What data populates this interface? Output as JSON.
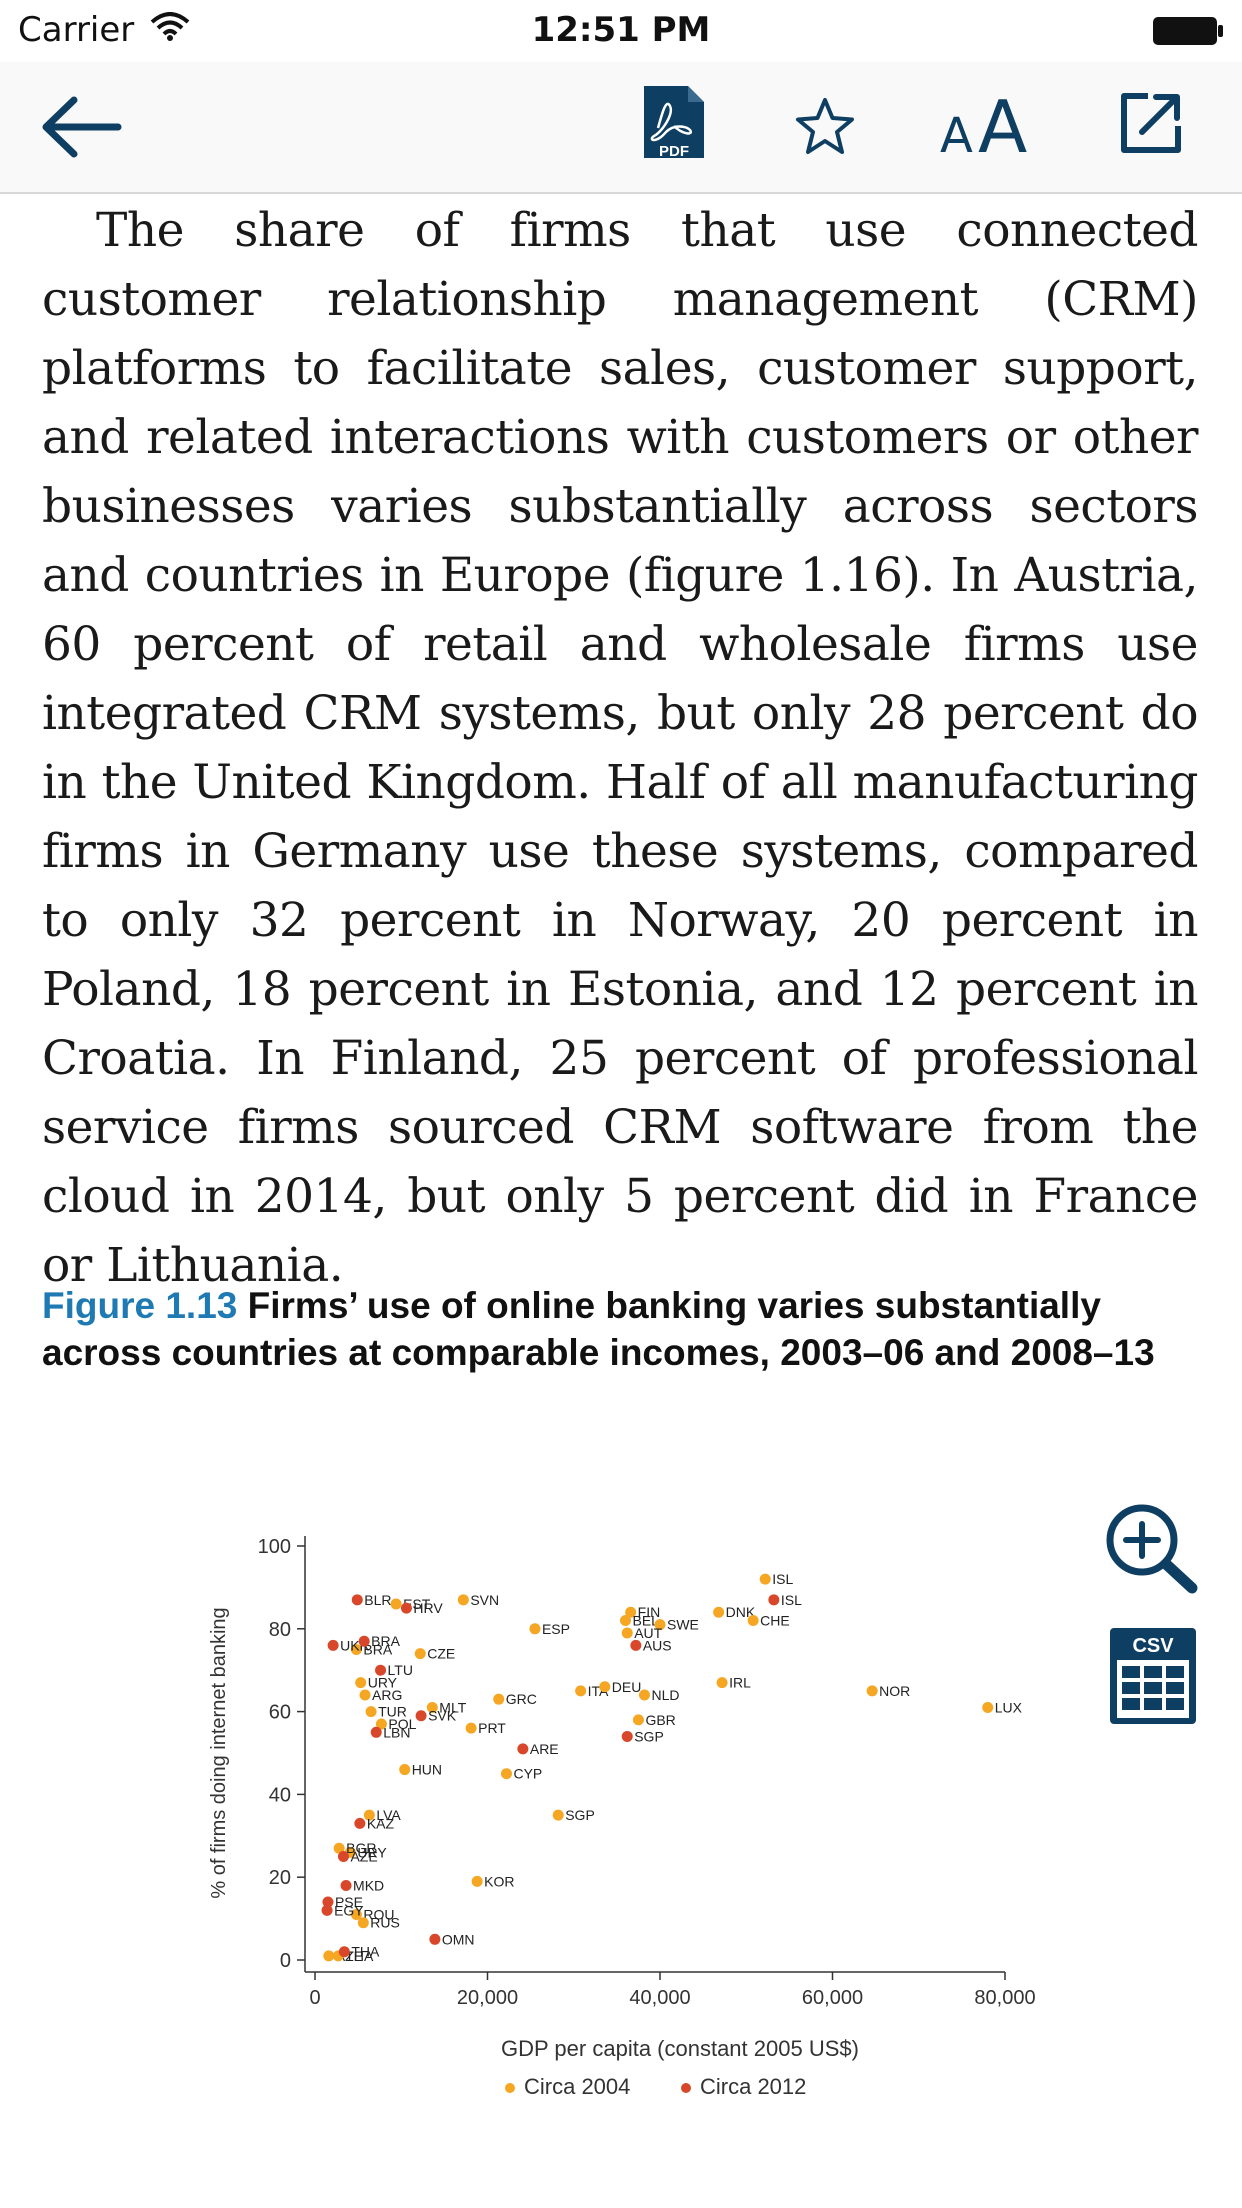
{
  "status_bar": {
    "carrier": "Carrier",
    "time": "12:51 PM"
  },
  "toolbar": {
    "back_icon": "arrow-left-icon",
    "pdf_label": "PDF",
    "star_icon": "star-icon",
    "font_size_label": "AA",
    "share_icon": "external-link-icon"
  },
  "body": {
    "paragraph": "The share of firms that use connected customer relationship management (CRM) platforms to facil­itate sales, customer support, and related interac­tions with customers or other businesses varies substantially across sectors and countries in Europe (figure 1.16). In Austria, 60 percent of retail and wholesale firms use integrated CRM systems, but only 28 percent do in the United Kingdom. Half of all manufacturing firms in Germany use these sys­tems, compared to only 32 percent in Norway, 20 percent in Poland, 18 percent in Estonia, and 12 per­cent in Croatia. In Finland, 25 percent of profession­al service firms sourced CRM software from the cloud in 2014, but only 5 percent did in France or Lithuania."
  },
  "figure": {
    "number": "Figure 1.13",
    "title": " Firms’ use of online banking varies substantially across countries at comparable incomes, 2003–06 and 2008–13"
  },
  "side_icons": {
    "zoom_icon": "zoom-in-icon",
    "csv_label": "CSV"
  },
  "chart_data": {
    "type": "scatter",
    "xlabel": "GDP per capita (constant 2005 US$)",
    "ylabel": "% of firms doing internet banking",
    "xlim": [
      0,
      80000
    ],
    "ylim": [
      0,
      100
    ],
    "x_ticks": [
      "0",
      "20,000",
      "40,000",
      "60,000",
      "80,000"
    ],
    "y_ticks": [
      "0",
      "20",
      "40",
      "60",
      "80",
      "100"
    ],
    "x_tick_values": [
      0,
      20000,
      40000,
      60000,
      80000
    ],
    "y_tick_values": [
      0,
      20,
      40,
      60,
      80,
      100
    ],
    "legend_position": "bottom",
    "series": [
      {
        "name": "Circa 2004",
        "color": "#f5a623",
        "points": [
          {
            "label": "EST",
            "x": 9400,
            "y": 86
          },
          {
            "label": "SVN",
            "x": 17200,
            "y": 87
          },
          {
            "label": "FIN",
            "x": 36600,
            "y": 84
          },
          {
            "label": "ISL",
            "x": 52200,
            "y": 92
          },
          {
            "label": "DNK",
            "x": 46800,
            "y": 84
          },
          {
            "label": "CHE",
            "x": 50800,
            "y": 82
          },
          {
            "label": "BEL",
            "x": 36000,
            "y": 82
          },
          {
            "label": "SWE",
            "x": 40000,
            "y": 81
          },
          {
            "label": "AUT",
            "x": 36200,
            "y": 79
          },
          {
            "label": "ESP",
            "x": 25500,
            "y": 80
          },
          {
            "label": "BRA",
            "x": 4800,
            "y": 75
          },
          {
            "label": "CZE",
            "x": 12200,
            "y": 74
          },
          {
            "label": "URY",
            "x": 5300,
            "y": 67
          },
          {
            "label": "ARG",
            "x": 5800,
            "y": 64
          },
          {
            "label": "IRL",
            "x": 47200,
            "y": 67
          },
          {
            "label": "NOR",
            "x": 64600,
            "y": 65
          },
          {
            "label": "ITA",
            "x": 30800,
            "y": 65
          },
          {
            "label": "DEU",
            "x": 33600,
            "y": 66
          },
          {
            "label": "NLD",
            "x": 38200,
            "y": 64
          },
          {
            "label": "GRC",
            "x": 21300,
            "y": 63
          },
          {
            "label": "TUR",
            "x": 6500,
            "y": 60
          },
          {
            "label": "MLT",
            "x": 13600,
            "y": 61
          },
          {
            "label": "POL",
            "x": 7700,
            "y": 57
          },
          {
            "label": "LUX",
            "x": 78000,
            "y": 61
          },
          {
            "label": "GBR",
            "x": 37500,
            "y": 58
          },
          {
            "label": "PRT",
            "x": 18100,
            "y": 56
          },
          {
            "label": "HUN",
            "x": 10400,
            "y": 46
          },
          {
            "label": "CYP",
            "x": 22200,
            "y": 45
          },
          {
            "label": "SGP",
            "x": 28200,
            "y": 35
          },
          {
            "label": "LVA",
            "x": 6300,
            "y": 35
          },
          {
            "label": "URY",
            "x": 4100,
            "y": 26
          },
          {
            "label": "BGR",
            "x": 2800,
            "y": 27
          },
          {
            "label": "KOR",
            "x": 18800,
            "y": 19
          },
          {
            "label": "ROU",
            "x": 4800,
            "y": 11
          },
          {
            "label": "RUS",
            "x": 5600,
            "y": 9
          },
          {
            "label": "AZE",
            "x": 1600,
            "y": 1
          },
          {
            "label": "THA",
            "x": 2700,
            "y": 1
          }
        ]
      },
      {
        "name": "Circa 2012",
        "color": "#d9472b",
        "points": [
          {
            "label": "BLR",
            "x": 4900,
            "y": 87
          },
          {
            "label": "HRV",
            "x": 10600,
            "y": 85
          },
          {
            "label": "ISL",
            "x": 53200,
            "y": 87
          },
          {
            "label": "UKR",
            "x": 2100,
            "y": 76
          },
          {
            "label": "BRA",
            "x": 5700,
            "y": 77
          },
          {
            "label": "LTU",
            "x": 7600,
            "y": 70
          },
          {
            "label": "AUS",
            "x": 37200,
            "y": 76
          },
          {
            "label": "SVK",
            "x": 12300,
            "y": 59
          },
          {
            "label": "LBN",
            "x": 7100,
            "y": 55
          },
          {
            "label": "SGP",
            "x": 36200,
            "y": 54
          },
          {
            "label": "ARE",
            "x": 24100,
            "y": 51
          },
          {
            "label": "KAZ",
            "x": 5200,
            "y": 33
          },
          {
            "label": "AZE",
            "x": 3300,
            "y": 25
          },
          {
            "label": "MKD",
            "x": 3600,
            "y": 18
          },
          {
            "label": "PSE",
            "x": 1500,
            "y": 14
          },
          {
            "label": "EGY",
            "x": 1400,
            "y": 12
          },
          {
            "label": "OMN",
            "x": 13900,
            "y": 5
          },
          {
            "label": "THA",
            "x": 3400,
            "y": 2
          }
        ]
      }
    ]
  }
}
